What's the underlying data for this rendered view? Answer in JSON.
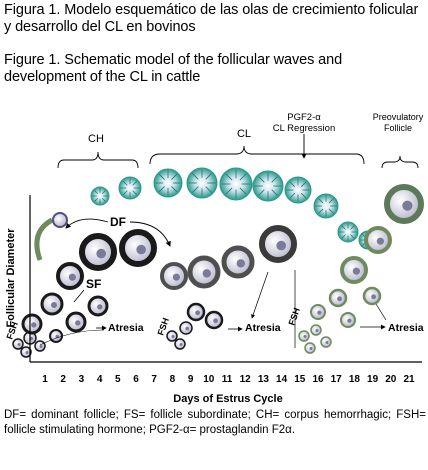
{
  "caption_es": "Figura 1. Modelo esquemático de las olas de crecimiento folicular y desarrollo del CL en bovinos",
  "caption_en": "Figure 1. Schematic model of the follicular waves and development of the CL in cattle",
  "labels": {
    "ch": "CH",
    "cl": "CL",
    "pgf_line1": "PGF2-α",
    "pgf_line2": "CL Regression",
    "preov_line1": "Preovulatory",
    "preov_line2": "Follicle",
    "df": "DF",
    "sf": "SF",
    "fsh": "FSH",
    "atresia": "Atresia",
    "y_axis": "Follicular Diameter",
    "x_axis": "Days of Estrus Cycle"
  },
  "days": [
    "1",
    "2",
    "3",
    "4",
    "5",
    "6",
    "7",
    "8",
    "9",
    "10",
    "11",
    "12",
    "13",
    "14",
    "15",
    "16",
    "17",
    "18",
    "19",
    "20",
    "21"
  ],
  "footnote": "DF= dominant follicle; FS= follicle subordinate; CH= corpus hemorrhagic; FSH= follicle stimulating hormone; PGF2-α= prostaglandin F2α.",
  "colors": {
    "cl_fill": "#2a9a8a",
    "cl_core": "#d8e6f0",
    "follicle_ring": "#1a1a1a",
    "follicle_center": "#8f8fa8",
    "late_follicle_ring": "#4f4f4f",
    "wave3_ring": "#6e8a5e",
    "preov_ring": "#5c7a5a"
  }
}
